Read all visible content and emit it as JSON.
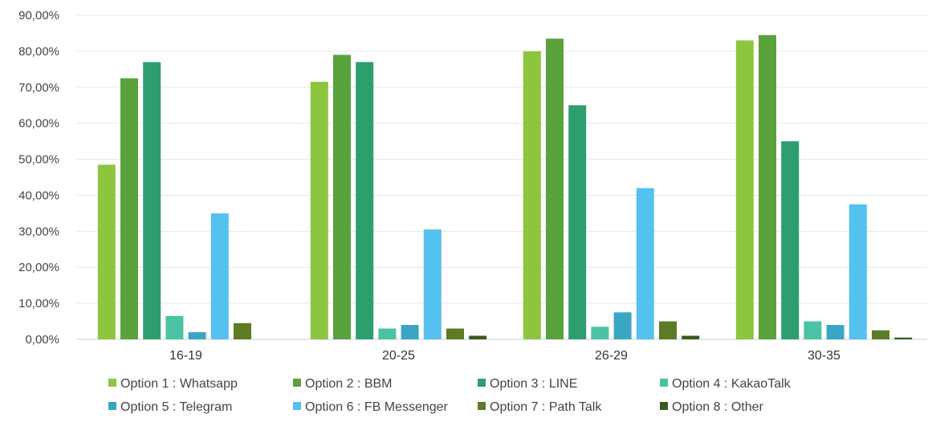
{
  "chart_data": {
    "type": "bar",
    "title": "",
    "xlabel": "",
    "ylabel": "",
    "ylim": [
      0,
      90
    ],
    "y_ticks": [
      "0,00%",
      "10,00%",
      "20,00%",
      "30,00%",
      "40,00%",
      "50,00%",
      "60,00%",
      "70,00%",
      "80,00%",
      "90,00%"
    ],
    "y_tick_values": [
      0,
      10,
      20,
      30,
      40,
      50,
      60,
      70,
      80,
      90
    ],
    "grid": true,
    "legend_position": "bottom",
    "categories": [
      "16-19",
      "20-25",
      "26-29",
      "30-35"
    ],
    "series": [
      {
        "name": "Option 1 : Whatsapp",
        "color": "#8cc63e",
        "values": [
          48.5,
          71.5,
          80.0,
          83.0
        ]
      },
      {
        "name": "Option 2 : BBM",
        "color": "#5aa23c",
        "values": [
          72.5,
          79.0,
          83.5,
          84.5
        ]
      },
      {
        "name": "Option 3 : LINE",
        "color": "#2e9e6e",
        "values": [
          77.0,
          77.0,
          65.0,
          55.0
        ]
      },
      {
        "name": "Option 4 : KakaoTalk",
        "color": "#4cc2a4",
        "values": [
          6.5,
          3.0,
          3.5,
          5.0
        ]
      },
      {
        "name": "Option 5 : Telegram",
        "color": "#3aa6c4",
        "values": [
          2.0,
          4.0,
          7.5,
          4.0
        ]
      },
      {
        "name": "Option 6 : FB Messenger",
        "color": "#55c1ee",
        "values": [
          35.0,
          30.5,
          42.0,
          37.5
        ]
      },
      {
        "name": "Option 7 : Path Talk",
        "color": "#5d7a25",
        "values": [
          4.5,
          3.0,
          5.0,
          2.5
        ]
      },
      {
        "name": "Option 8 : Other",
        "color": "#3a5a22",
        "values": [
          0,
          1.0,
          1.0,
          0.5
        ]
      }
    ]
  }
}
